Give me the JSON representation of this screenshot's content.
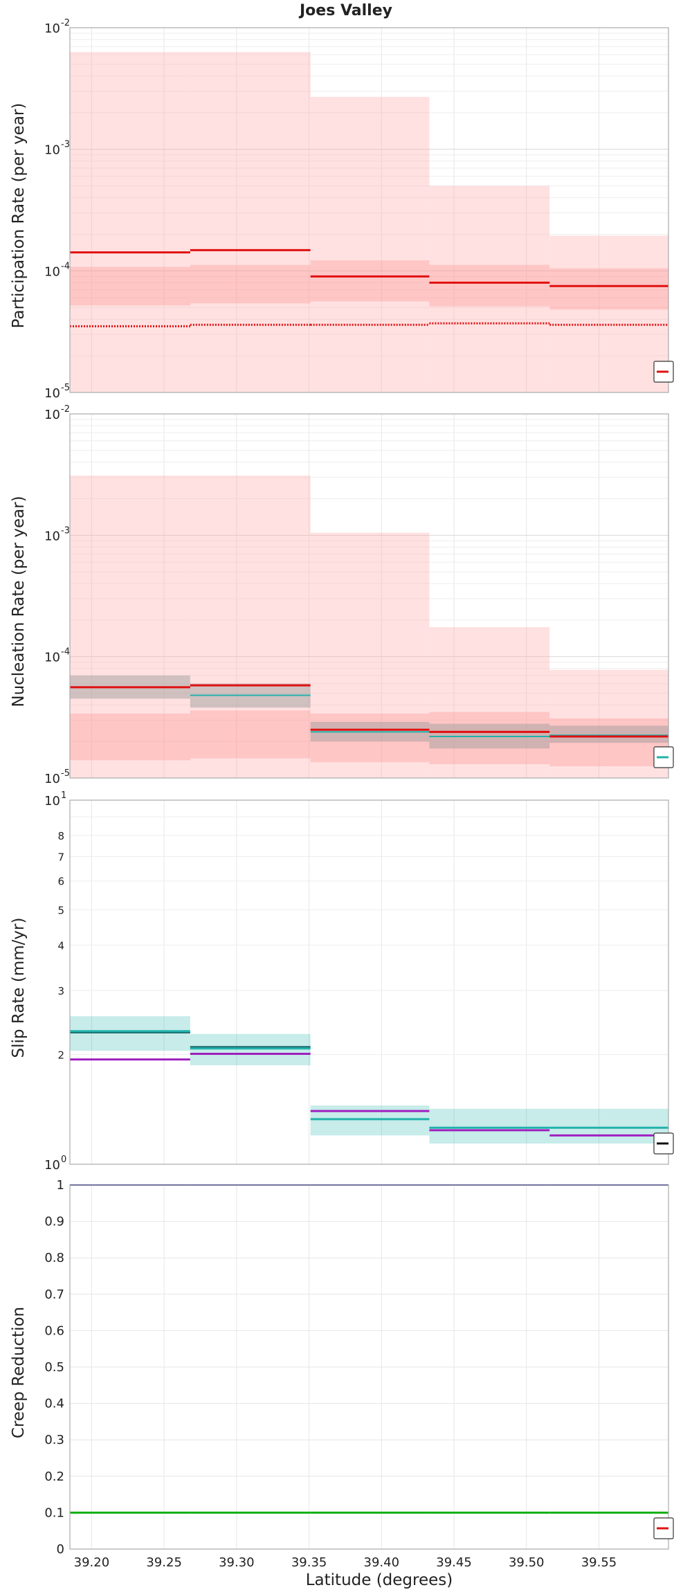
{
  "chart_data": {
    "title": "Joes Valley",
    "xlabel": "Latitude (degrees)",
    "type": "line",
    "x_range": [
      39.185,
      39.598
    ],
    "x_ticks": [
      "39.20",
      "39.25",
      "39.30",
      "39.35",
      "39.40",
      "39.45",
      "39.50",
      "39.55"
    ],
    "bin_edges": [
      39.185,
      39.268,
      39.351,
      39.433,
      39.516,
      39.598
    ],
    "panels": [
      {
        "ylabel": "Participation Rate (per year)",
        "yscale": "log",
        "ylim": [
          1e-05,
          0.01
        ],
        "series": [
          {
            "style": "band",
            "color": "#ffaaaa",
            "opacity": 0.35,
            "low": [
              1e-05,
              1e-05,
              1e-05,
              1e-05,
              1e-05
            ],
            "high": [
              0.0063,
              0.0063,
              0.0027,
              0.0005,
              0.000195
            ]
          },
          {
            "style": "band",
            "color": "#ff8888",
            "opacity": 0.3,
            "low": [
              5.2e-05,
              5.4e-05,
              5.6e-05,
              5.1e-05,
              4.8e-05
            ],
            "high": [
              0.000108,
              0.000112,
              0.000122,
              0.000112,
              0.000105
            ]
          },
          {
            "style": "line",
            "color": "#e01010",
            "width": 3,
            "values": [
              0.000142,
              0.000148,
              9e-05,
              8e-05,
              7.5e-05
            ]
          },
          {
            "style": "dotted",
            "color": "#e01010",
            "width": 3,
            "values": [
              3.5e-05,
              3.6e-05,
              3.6e-05,
              3.7e-05,
              3.6e-05
            ]
          }
        ]
      },
      {
        "ylabel": "Nucleation Rate (per year)",
        "yscale": "log",
        "ylim": [
          1e-05,
          0.01
        ],
        "series": [
          {
            "style": "band",
            "color": "#ffaaaa",
            "opacity": 0.35,
            "low": [
              1e-05,
              1e-05,
              1e-05,
              1e-05,
              1e-05
            ],
            "high": [
              0.0031,
              0.0031,
              0.00105,
              0.000175,
              7.8e-05
            ]
          },
          {
            "style": "band",
            "color": "#ff8888",
            "opacity": 0.3,
            "low": [
              1.4e-05,
              1.45e-05,
              1.35e-05,
              1.3e-05,
              1.25e-05
            ],
            "high": [
              3.4e-05,
              3.6e-05,
              3.4e-05,
              3.5e-05,
              3.1e-05
            ]
          },
          {
            "style": "band",
            "color": "#999999",
            "opacity": 0.45,
            "low": [
              4.5e-05,
              3.8e-05,
              2e-05,
              1.75e-05,
              1.95e-05
            ],
            "high": [
              7e-05,
              6e-05,
              2.9e-05,
              2.8e-05,
              2.7e-05
            ]
          },
          {
            "style": "line",
            "color": "#20b2aa",
            "width": 2,
            "values": [
              5.6e-05,
              4.8e-05,
              2.4e-05,
              2.2e-05,
              2.25e-05
            ]
          },
          {
            "style": "line",
            "color": "#e01010",
            "width": 3,
            "values": [
              5.6e-05,
              5.8e-05,
              2.5e-05,
              2.4e-05,
              2.2e-05
            ]
          }
        ]
      },
      {
        "ylabel": "Slip Rate (mm/yr)",
        "yscale": "log",
        "ylim": [
          1,
          10
        ],
        "minor_labels": [
          2,
          3,
          4,
          5,
          6,
          7,
          8
        ],
        "series": [
          {
            "style": "band",
            "color": "#20b2aa",
            "opacity": 0.25,
            "low": [
              2.05,
              1.87,
              1.2,
              1.14,
              1.14
            ],
            "high": [
              2.55,
              2.28,
              1.45,
              1.42,
              1.42
            ]
          },
          {
            "style": "line",
            "color": "#1a6a6a",
            "width": 2.5,
            "values": [
              2.3,
              2.1,
              null,
              null,
              null
            ]
          },
          {
            "style": "line",
            "color": "#20b2aa",
            "width": 3,
            "values": [
              2.32,
              2.08,
              1.33,
              1.26,
              1.26
            ]
          },
          {
            "style": "line",
            "color": "#a020c0",
            "width": 3,
            "values": [
              1.94,
              2.01,
              1.4,
              1.24,
              1.2
            ]
          }
        ]
      },
      {
        "ylabel": "Creep Reduction",
        "yscale": "linear",
        "ylim": [
          0,
          1
        ],
        "ticks": [
          0,
          0.1,
          0.2,
          0.3,
          0.4,
          0.5,
          0.6,
          0.7,
          0.8,
          0.9,
          1
        ],
        "series": [
          {
            "style": "line",
            "color": "#202090",
            "width": 2,
            "values": [
              1,
              1,
              1,
              1,
              1
            ]
          },
          {
            "style": "line",
            "color": "#10b010",
            "width": 3,
            "values": [
              0.1,
              0.1,
              0.1,
              0.1,
              0.1
            ]
          }
        ]
      }
    ],
    "legends": [
      {
        "color": "#e01010"
      },
      {
        "color": "#20b2aa"
      },
      {
        "color": "#111111"
      },
      {
        "color": "#e01010"
      }
    ]
  }
}
